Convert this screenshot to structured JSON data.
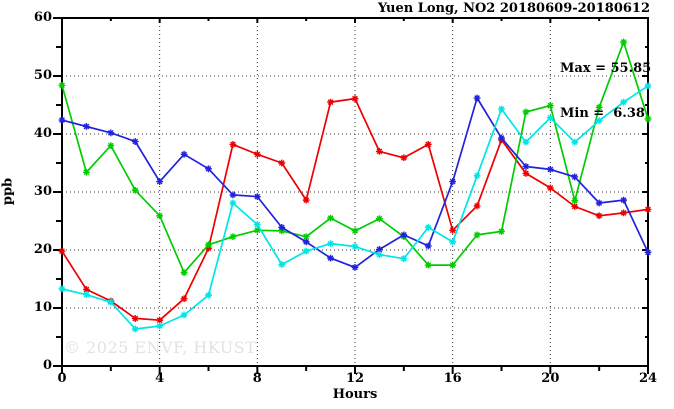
{
  "page": {
    "background": "#ffffff"
  },
  "watermark": {
    "text": "© 2025 ENVF, HKUST",
    "color": "#e2e2e2"
  },
  "chart_data": {
    "type": "line",
    "title": "Yuen Long, NO2 20180609-20180612",
    "xlabel": "Hours",
    "ylabel": "ppb",
    "xlim": [
      0,
      24
    ],
    "ylim": [
      0,
      60
    ],
    "x_major_ticks": [
      0,
      4,
      8,
      12,
      16,
      20,
      24
    ],
    "x_minor_step": 2,
    "y_major_ticks": [
      0,
      10,
      20,
      30,
      40,
      50,
      60
    ],
    "y_minor_step": 5,
    "grid": "dotted",
    "legend": "none",
    "marker": "asterisk",
    "annotation": {
      "max_label": "Max = 55.85",
      "min_label": "Min =  6.38",
      "max_value": 55.85,
      "min_value": 6.38
    },
    "x": [
      0,
      1,
      2,
      3,
      4,
      5,
      6,
      7,
      8,
      9,
      10,
      11,
      12,
      13,
      14,
      15,
      16,
      17,
      18,
      19,
      20,
      21,
      22,
      23,
      24
    ],
    "series": [
      {
        "name": "series-red",
        "color": "#ee0000",
        "values": [
          19.8,
          13.2,
          11.2,
          8.2,
          7.9,
          11.6,
          20.3,
          38.2,
          36.5,
          35.0,
          28.6,
          45.5,
          46.1,
          37.0,
          35.9,
          38.2,
          23.4,
          27.6,
          39.0,
          33.2,
          30.7,
          27.5,
          25.9,
          26.4,
          27.0
        ]
      },
      {
        "name": "series-green",
        "color": "#00cc00",
        "values": [
          48.4,
          33.4,
          38.0,
          30.3,
          25.9,
          16.1,
          20.9,
          22.3,
          23.4,
          23.3,
          22.3,
          25.5,
          23.3,
          25.4,
          22.3,
          17.4,
          17.4,
          22.6,
          23.2,
          43.8,
          44.9,
          28.5,
          44.6,
          55.85,
          42.6
        ]
      },
      {
        "name": "series-blue",
        "color": "#2222dd",
        "values": [
          42.4,
          41.3,
          40.2,
          38.7,
          31.8,
          36.5,
          34.0,
          29.5,
          29.2,
          23.9,
          21.4,
          18.6,
          17.0,
          20.1,
          22.6,
          20.7,
          31.8,
          46.2,
          39.3,
          34.4,
          33.9,
          32.6,
          28.1,
          28.6,
          19.6
        ]
      },
      {
        "name": "series-cyan",
        "color": "#00e6e6",
        "values": [
          13.3,
          12.3,
          11.0,
          6.38,
          6.9,
          8.8,
          12.2,
          28.1,
          24.4,
          17.5,
          19.8,
          21.1,
          20.6,
          19.2,
          18.5,
          23.9,
          21.4,
          32.8,
          44.3,
          38.6,
          42.8,
          38.6,
          42.3,
          45.5,
          48.3
        ]
      }
    ]
  }
}
